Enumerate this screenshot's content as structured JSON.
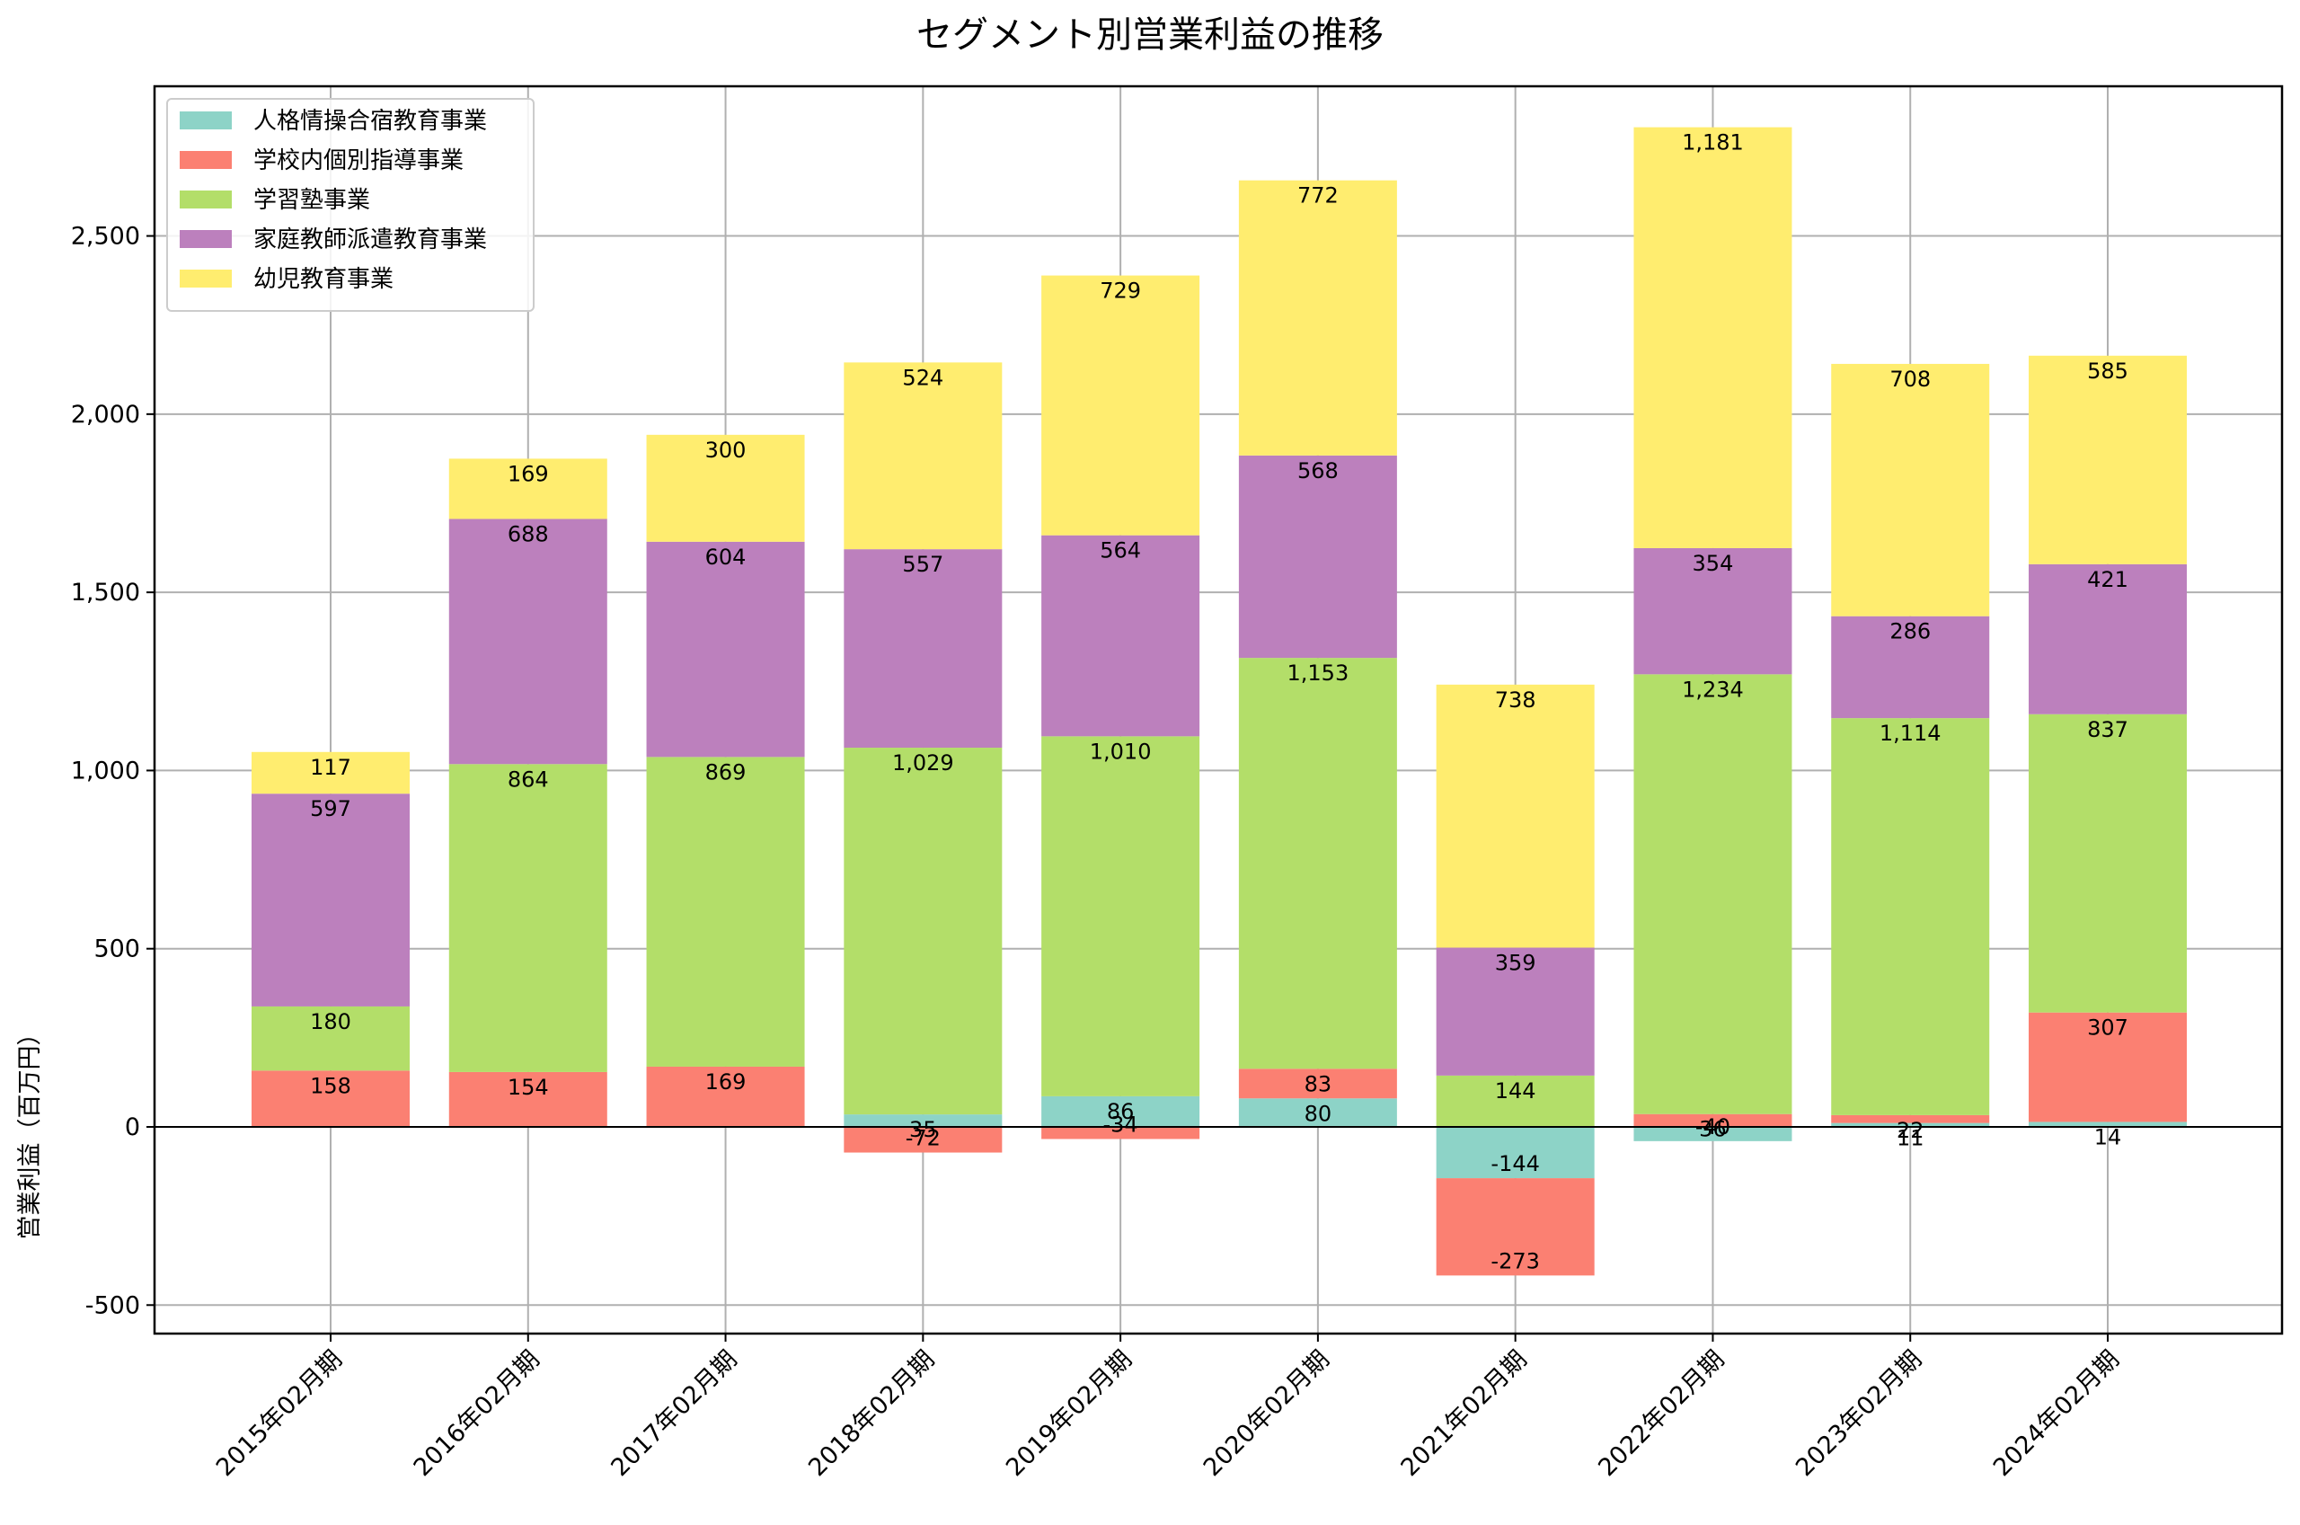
{
  "chart_data": {
    "type": "bar",
    "stacked": true,
    "title": "セグメント別営業利益の推移",
    "xlabel": "",
    "ylabel": "営業利益（百万円）",
    "ylim": [
      -580,
      2920
    ],
    "yticks": [
      -500,
      0,
      500,
      1000,
      1500,
      2000,
      2500
    ],
    "ytick_labels": [
      "-500",
      "0",
      "500",
      "1,000",
      "1,500",
      "2,000",
      "2,500"
    ],
    "grid": true,
    "legend_position": "top-left",
    "categories": [
      "2015年02月期",
      "2016年02月期",
      "2017年02月期",
      "2018年02月期",
      "2019年02月期",
      "2020年02月期",
      "2021年02月期",
      "2022年02月期",
      "2023年02月期",
      "2024年02月期"
    ],
    "series": [
      {
        "name": "人格情操合宿教育事業",
        "color": "#8dd3c7",
        "values": [
          0,
          0,
          0,
          35,
          86,
          80,
          -144,
          -40,
          11,
          14
        ]
      },
      {
        "name": "学校内個別指導事業",
        "color": "#fb8072",
        "values": [
          158,
          154,
          169,
          -72,
          -34,
          83,
          -273,
          36,
          22,
          307
        ]
      },
      {
        "name": "学習塾事業",
        "color": "#b3de69",
        "values": [
          180,
          864,
          869,
          1029,
          1010,
          1153,
          144,
          1234,
          1114,
          837
        ]
      },
      {
        "name": "家庭教師派遣教育事業",
        "color": "#bc80bd",
        "values": [
          597,
          688,
          604,
          557,
          564,
          568,
          359,
          354,
          286,
          421
        ]
      },
      {
        "name": "幼児教育事業",
        "color": "#ffed6f",
        "values": [
          117,
          169,
          300,
          524,
          729,
          772,
          738,
          1181,
          708,
          585
        ]
      }
    ]
  }
}
